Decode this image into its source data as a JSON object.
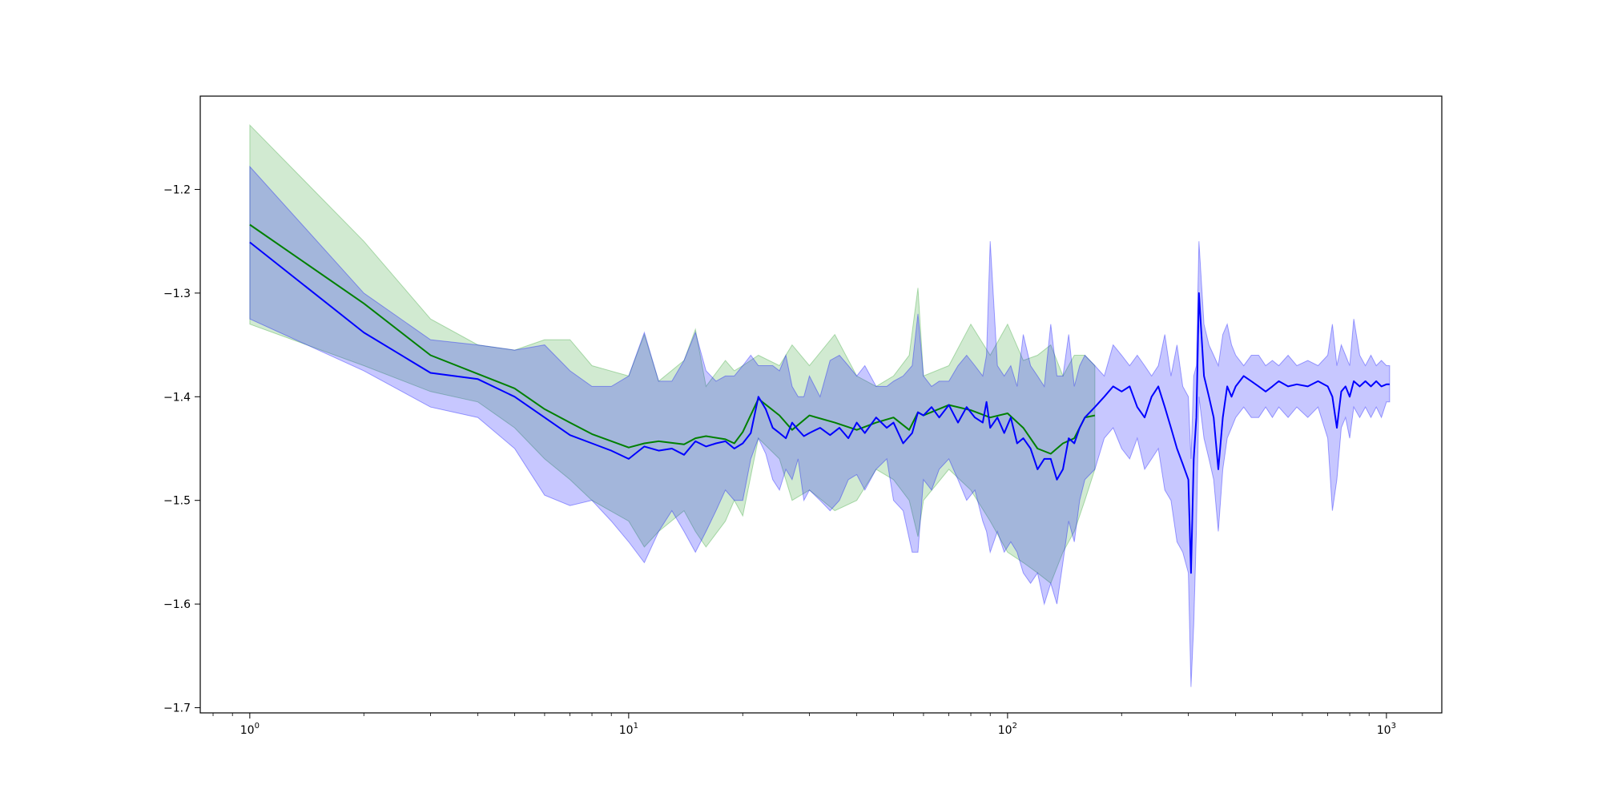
{
  "chart_data": {
    "type": "area",
    "title": "",
    "xlabel": "",
    "ylabel": "",
    "x_scale": "log",
    "xlim": [
      0.74,
      1400
    ],
    "ylim": [
      -1.705,
      -1.11
    ],
    "grid": false,
    "x_ticks": [
      {
        "value": 1,
        "base": "10",
        "exp": "0"
      },
      {
        "value": 10,
        "base": "10",
        "exp": "1"
      },
      {
        "value": 100,
        "base": "10",
        "exp": "2"
      },
      {
        "value": 1000,
        "base": "10",
        "exp": "3"
      }
    ],
    "y_ticks": [
      {
        "value": -1.2,
        "label": "−1.2"
      },
      {
        "value": -1.3,
        "label": "−1.3"
      },
      {
        "value": -1.4,
        "label": "−1.4"
      },
      {
        "value": -1.5,
        "label": "−1.5"
      },
      {
        "value": -1.6,
        "label": "−1.6"
      },
      {
        "value": -1.7,
        "label": "−1.7"
      }
    ],
    "series": [
      {
        "color": "#008000",
        "band_color": "#2ca02c",
        "x": [
          1,
          2,
          3,
          4,
          5,
          6,
          7,
          8,
          10,
          11,
          12,
          14,
          15,
          16,
          18,
          19,
          20,
          22,
          25,
          27,
          30,
          35,
          40,
          45,
          50,
          55,
          58,
          60,
          70,
          80,
          90,
          100,
          110,
          120,
          130,
          140,
          150,
          160,
          170
        ],
        "mean": [
          -1.234,
          -1.31,
          -1.36,
          -1.378,
          -1.392,
          -1.412,
          -1.425,
          -1.436,
          -1.449,
          -1.445,
          -1.443,
          -1.446,
          -1.44,
          -1.438,
          -1.441,
          -1.445,
          -1.434,
          -1.402,
          -1.418,
          -1.432,
          -1.418,
          -1.425,
          -1.432,
          -1.425,
          -1.42,
          -1.432,
          -1.415,
          -1.418,
          -1.408,
          -1.413,
          -1.42,
          -1.416,
          -1.43,
          -1.45,
          -1.455,
          -1.445,
          -1.44,
          -1.42,
          -1.418
        ],
        "upper": [
          -1.138,
          -1.25,
          -1.325,
          -1.35,
          -1.355,
          -1.345,
          -1.345,
          -1.37,
          -1.38,
          -1.34,
          -1.385,
          -1.365,
          -1.335,
          -1.39,
          -1.365,
          -1.375,
          -1.37,
          -1.36,
          -1.37,
          -1.35,
          -1.37,
          -1.34,
          -1.38,
          -1.39,
          -1.38,
          -1.36,
          -1.295,
          -1.38,
          -1.37,
          -1.33,
          -1.36,
          -1.33,
          -1.365,
          -1.36,
          -1.35,
          -1.38,
          -1.36,
          -1.36,
          -1.37
        ],
        "lower": [
          -1.33,
          -1.37,
          -1.395,
          -1.405,
          -1.43,
          -1.46,
          -1.48,
          -1.5,
          -1.52,
          -1.545,
          -1.53,
          -1.51,
          -1.53,
          -1.545,
          -1.52,
          -1.5,
          -1.515,
          -1.44,
          -1.46,
          -1.5,
          -1.49,
          -1.51,
          -1.5,
          -1.47,
          -1.48,
          -1.5,
          -1.535,
          -1.5,
          -1.47,
          -1.49,
          -1.52,
          -1.55,
          -1.56,
          -1.57,
          -1.58,
          -1.55,
          -1.53,
          -1.5,
          -1.47
        ]
      },
      {
        "color": "#0000ff",
        "band_color": "#0000ff",
        "x": [
          1,
          2,
          3,
          4,
          5,
          6,
          7,
          8,
          9,
          10,
          11,
          12,
          13,
          14,
          15,
          16,
          17,
          18,
          19,
          20,
          21,
          22,
          23,
          24,
          25,
          26,
          27,
          28,
          29,
          30,
          32,
          34,
          36,
          38,
          40,
          42,
          45,
          48,
          50,
          53,
          56,
          58,
          60,
          63,
          66,
          70,
          74,
          78,
          82,
          86,
          88,
          90,
          94,
          98,
          102,
          106,
          110,
          115,
          120,
          125,
          130,
          135,
          140,
          145,
          150,
          155,
          160,
          170,
          180,
          190,
          200,
          210,
          220,
          230,
          240,
          250,
          260,
          270,
          280,
          290,
          300,
          305,
          310,
          315,
          320,
          330,
          340,
          350,
          360,
          370,
          380,
          390,
          400,
          420,
          440,
          460,
          480,
          500,
          520,
          550,
          580,
          620,
          660,
          700,
          720,
          740,
          760,
          780,
          800,
          820,
          850,
          880,
          910,
          940,
          970,
          1000,
          1020
        ],
        "mean": [
          -1.251,
          -1.338,
          -1.377,
          -1.383,
          -1.4,
          -1.42,
          -1.437,
          -1.445,
          -1.452,
          -1.46,
          -1.448,
          -1.452,
          -1.45,
          -1.456,
          -1.443,
          -1.448,
          -1.445,
          -1.443,
          -1.45,
          -1.445,
          -1.435,
          -1.4,
          -1.412,
          -1.43,
          -1.435,
          -1.44,
          -1.425,
          -1.432,
          -1.438,
          -1.435,
          -1.43,
          -1.437,
          -1.43,
          -1.44,
          -1.425,
          -1.435,
          -1.42,
          -1.43,
          -1.425,
          -1.445,
          -1.435,
          -1.415,
          -1.418,
          -1.41,
          -1.42,
          -1.408,
          -1.425,
          -1.41,
          -1.42,
          -1.425,
          -1.405,
          -1.43,
          -1.42,
          -1.435,
          -1.42,
          -1.445,
          -1.44,
          -1.45,
          -1.47,
          -1.46,
          -1.46,
          -1.48,
          -1.47,
          -1.44,
          -1.445,
          -1.43,
          -1.42,
          -1.41,
          -1.4,
          -1.39,
          -1.395,
          -1.39,
          -1.41,
          -1.42,
          -1.4,
          -1.39,
          -1.41,
          -1.43,
          -1.45,
          -1.465,
          -1.48,
          -1.57,
          -1.46,
          -1.42,
          -1.3,
          -1.38,
          -1.4,
          -1.42,
          -1.47,
          -1.42,
          -1.39,
          -1.4,
          -1.39,
          -1.38,
          -1.385,
          -1.39,
          -1.395,
          -1.39,
          -1.385,
          -1.39,
          -1.388,
          -1.39,
          -1.385,
          -1.39,
          -1.4,
          -1.43,
          -1.395,
          -1.39,
          -1.4,
          -1.385,
          -1.39,
          -1.385,
          -1.39,
          -1.385,
          -1.39,
          -1.388,
          -1.388
        ],
        "upper": [
          -1.178,
          -1.3,
          -1.345,
          -1.35,
          -1.355,
          -1.35,
          -1.375,
          -1.39,
          -1.39,
          -1.38,
          -1.338,
          -1.385,
          -1.385,
          -1.365,
          -1.338,
          -1.375,
          -1.385,
          -1.38,
          -1.38,
          -1.37,
          -1.36,
          -1.37,
          -1.37,
          -1.37,
          -1.375,
          -1.36,
          -1.39,
          -1.4,
          -1.4,
          -1.38,
          -1.4,
          -1.365,
          -1.36,
          -1.37,
          -1.38,
          -1.37,
          -1.39,
          -1.39,
          -1.385,
          -1.38,
          -1.37,
          -1.32,
          -1.38,
          -1.39,
          -1.385,
          -1.385,
          -1.37,
          -1.36,
          -1.37,
          -1.38,
          -1.36,
          -1.25,
          -1.37,
          -1.38,
          -1.37,
          -1.39,
          -1.34,
          -1.37,
          -1.38,
          -1.39,
          -1.33,
          -1.38,
          -1.38,
          -1.34,
          -1.39,
          -1.37,
          -1.36,
          -1.37,
          -1.38,
          -1.35,
          -1.36,
          -1.37,
          -1.36,
          -1.37,
          -1.38,
          -1.37,
          -1.34,
          -1.38,
          -1.35,
          -1.39,
          -1.4,
          -1.46,
          -1.38,
          -1.37,
          -1.25,
          -1.33,
          -1.35,
          -1.36,
          -1.37,
          -1.34,
          -1.33,
          -1.35,
          -1.36,
          -1.37,
          -1.36,
          -1.36,
          -1.37,
          -1.365,
          -1.37,
          -1.36,
          -1.37,
          -1.365,
          -1.37,
          -1.36,
          -1.33,
          -1.37,
          -1.35,
          -1.36,
          -1.37,
          -1.325,
          -1.36,
          -1.37,
          -1.36,
          -1.37,
          -1.365,
          -1.37,
          -1.37
        ],
        "lower": [
          -1.325,
          -1.375,
          -1.41,
          -1.42,
          -1.45,
          -1.495,
          -1.505,
          -1.5,
          -1.52,
          -1.54,
          -1.56,
          -1.53,
          -1.51,
          -1.53,
          -1.55,
          -1.53,
          -1.51,
          -1.49,
          -1.5,
          -1.5,
          -1.46,
          -1.44,
          -1.455,
          -1.48,
          -1.49,
          -1.47,
          -1.48,
          -1.46,
          -1.5,
          -1.49,
          -1.5,
          -1.51,
          -1.5,
          -1.48,
          -1.475,
          -1.49,
          -1.47,
          -1.46,
          -1.5,
          -1.51,
          -1.55,
          -1.55,
          -1.48,
          -1.49,
          -1.47,
          -1.46,
          -1.48,
          -1.5,
          -1.49,
          -1.52,
          -1.53,
          -1.55,
          -1.53,
          -1.55,
          -1.54,
          -1.55,
          -1.57,
          -1.58,
          -1.57,
          -1.6,
          -1.58,
          -1.6,
          -1.56,
          -1.52,
          -1.54,
          -1.5,
          -1.48,
          -1.47,
          -1.44,
          -1.43,
          -1.45,
          -1.46,
          -1.44,
          -1.47,
          -1.46,
          -1.45,
          -1.49,
          -1.5,
          -1.54,
          -1.55,
          -1.57,
          -1.68,
          -1.62,
          -1.53,
          -1.4,
          -1.44,
          -1.46,
          -1.48,
          -1.53,
          -1.47,
          -1.44,
          -1.43,
          -1.42,
          -1.41,
          -1.42,
          -1.42,
          -1.41,
          -1.42,
          -1.41,
          -1.42,
          -1.41,
          -1.42,
          -1.41,
          -1.44,
          -1.51,
          -1.48,
          -1.43,
          -1.42,
          -1.44,
          -1.41,
          -1.42,
          -1.41,
          -1.42,
          -1.41,
          -1.42,
          -1.405,
          -1.405
        ]
      }
    ]
  }
}
